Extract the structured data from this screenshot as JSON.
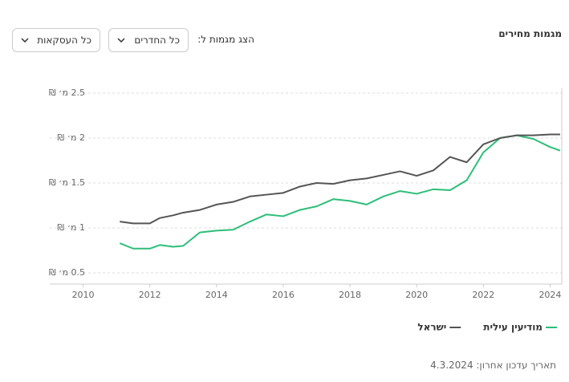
{
  "header": {
    "title": "מגמות מחירים"
  },
  "filter": {
    "label": "הצג מגמות ל:",
    "rooms": "כל החדרים",
    "deals": "כל העסקאות"
  },
  "chart_data": {
    "type": "line",
    "x": [
      2011.1,
      2011.5,
      2012.0,
      2012.3,
      2012.7,
      2013.0,
      2013.5,
      2014.0,
      2014.5,
      2015.0,
      2015.5,
      2016.0,
      2016.5,
      2017.0,
      2017.5,
      2018.0,
      2018.5,
      2019.0,
      2019.5,
      2020.0,
      2020.5,
      2021.0,
      2021.5,
      2022.0,
      2022.5,
      2023.0,
      2023.5,
      2024.0,
      2024.3
    ],
    "series": [
      {
        "name": "מודיעין עילית",
        "color": "#2dbe78",
        "values": [
          0.83,
          0.77,
          0.77,
          0.81,
          0.79,
          0.8,
          0.95,
          0.97,
          0.98,
          1.07,
          1.15,
          1.13,
          1.2,
          1.24,
          1.32,
          1.3,
          1.26,
          1.35,
          1.41,
          1.38,
          1.43,
          1.42,
          1.53,
          1.84,
          2.0,
          2.03,
          1.99,
          1.9,
          1.86
        ]
      },
      {
        "name": "ישראל",
        "color": "#555555",
        "values": [
          1.07,
          1.05,
          1.05,
          1.11,
          1.14,
          1.17,
          1.2,
          1.26,
          1.29,
          1.35,
          1.37,
          1.39,
          1.46,
          1.5,
          1.49,
          1.53,
          1.55,
          1.59,
          1.63,
          1.58,
          1.64,
          1.79,
          1.73,
          1.93,
          2.0,
          2.03,
          2.03,
          2.04,
          2.04
        ]
      }
    ],
    "xlim": [
      2009,
      2024.35
    ],
    "xticks": [
      2010,
      2012,
      2014,
      2016,
      2018,
      2020,
      2022,
      2024
    ],
    "ylim": [
      0.375,
      2.5
    ],
    "yticks": [
      {
        "value": 0.5,
        "label": "0.5 מ׳ ₪"
      },
      {
        "value": 1,
        "label": "1 מ׳ ₪"
      },
      {
        "value": 1.5,
        "label": "1.5 מ׳ ₪"
      },
      {
        "value": 2,
        "label": "2 מ׳ ₪"
      },
      {
        "value": 2.5,
        "label": "2.5 מ׳ ₪"
      }
    ],
    "grid": true,
    "legend": "bottom"
  },
  "footer": "תאריך עדכון אחרון: 4.3.2024"
}
